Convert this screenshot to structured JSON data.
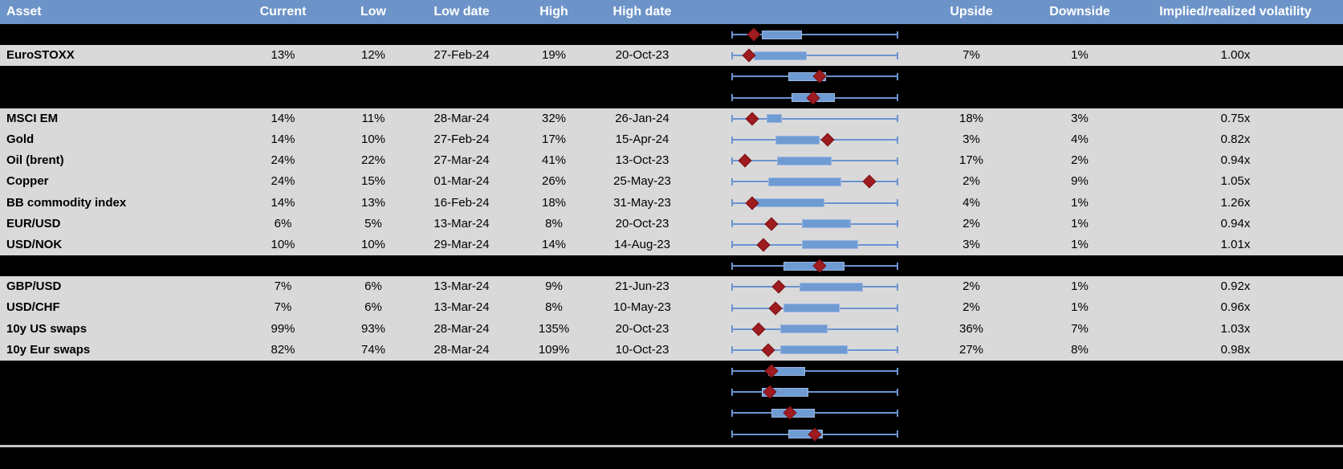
{
  "header": {
    "columns": {
      "asset": "Asset",
      "current": "Current",
      "low": "Low",
      "low_date": "Low date",
      "high": "High",
      "high_date": "High date",
      "chart": "",
      "upside": "Upside",
      "downside": "Downside",
      "iv_rv": "Implied/realized volatility"
    }
  },
  "colors": {
    "header_bg": "#6D94C8",
    "header_text": "#FFFFFF",
    "row_bg": "#D9D9D9",
    "hidden_bg": "#000000",
    "body_text": "#000000",
    "box_fill": "#6F9BD3",
    "box_border": "#9BB6E2",
    "whisker": "#6B94D0",
    "marker": "#9E1B20",
    "marker_border": "#7A1115",
    "separator": "#C6C6C6"
  },
  "chart_data": {
    "type": "table",
    "title": "",
    "columns": [
      "Asset",
      "Current",
      "Low",
      "Low date",
      "High",
      "High date",
      "1y range box-whisker chart",
      "Upside",
      "Downside",
      "Implied/realized volatility"
    ],
    "legend": {
      "whisker": "full range (shared axis, all rows span identical min-max whiskers)",
      "box": "inner range, normalized 0-1 across the shared whisker axis",
      "marker": "red diamond = current level, normalized 0-1"
    },
    "rows": [
      {
        "kind": "hidden",
        "asset": "",
        "current": "",
        "low": "",
        "low_date": "",
        "high": "",
        "high_date": "",
        "upside": "",
        "downside": "",
        "iv_rv": "",
        "box_lo": 0.18,
        "box_hi": 0.42,
        "marker": 0.13
      },
      {
        "kind": "data",
        "asset": "EuroSTOXX",
        "current": "13%",
        "low": "12%",
        "low_date": "27-Feb-24",
        "high": "19%",
        "high_date": "20-Oct-23",
        "upside": "7%",
        "downside": "1%",
        "iv_rv": "1.00x",
        "box_lo": 0.13,
        "box_hi": 0.45,
        "marker": 0.1
      },
      {
        "kind": "hidden",
        "asset": "",
        "current": "",
        "low": "",
        "low_date": "",
        "high": "",
        "high_date": "",
        "upside": "",
        "downside": "",
        "iv_rv": "",
        "box_lo": 0.34,
        "box_hi": 0.57,
        "marker": 0.53
      },
      {
        "kind": "hidden",
        "asset": "",
        "current": "",
        "low": "",
        "low_date": "",
        "high": "",
        "high_date": "",
        "upside": "",
        "downside": "",
        "iv_rv": "",
        "box_lo": 0.36,
        "box_hi": 0.62,
        "marker": 0.49
      },
      {
        "kind": "data",
        "asset": "MSCI EM",
        "current": "14%",
        "low": "11%",
        "low_date": "28-Mar-24",
        "high": "32%",
        "high_date": "26-Jan-24",
        "upside": "18%",
        "downside": "3%",
        "iv_rv": "0.75x",
        "box_lo": 0.21,
        "box_hi": 0.3,
        "marker": 0.12
      },
      {
        "kind": "data",
        "asset": "Gold",
        "current": "14%",
        "low": "10%",
        "low_date": "27-Feb-24",
        "high": "17%",
        "high_date": "15-Apr-24",
        "upside": "3%",
        "downside": "4%",
        "iv_rv": "0.82x",
        "box_lo": 0.26,
        "box_hi": 0.53,
        "marker": 0.58
      },
      {
        "kind": "data",
        "asset": "Oil (brent)",
        "current": "24%",
        "low": "22%",
        "low_date": "27-Mar-24",
        "high": "41%",
        "high_date": "13-Oct-23",
        "upside": "17%",
        "downside": "2%",
        "iv_rv": "0.94x",
        "box_lo": 0.27,
        "box_hi": 0.6,
        "marker": 0.08
      },
      {
        "kind": "data",
        "asset": "Copper",
        "current": "24%",
        "low": "15%",
        "low_date": "01-Mar-24",
        "high": "26%",
        "high_date": "25-May-23",
        "upside": "2%",
        "downside": "9%",
        "iv_rv": "1.05x",
        "box_lo": 0.22,
        "box_hi": 0.66,
        "marker": 0.83
      },
      {
        "kind": "data",
        "asset": "BB commodity index",
        "current": "14%",
        "low": "13%",
        "low_date": "16-Feb-24",
        "high": "18%",
        "high_date": "31-May-23",
        "upside": "4%",
        "downside": "1%",
        "iv_rv": "1.26x",
        "box_lo": 0.13,
        "box_hi": 0.56,
        "marker": 0.12
      },
      {
        "kind": "data",
        "asset": "EUR/USD",
        "current": "6%",
        "low": "5%",
        "low_date": "13-Mar-24",
        "high": "8%",
        "high_date": "20-Oct-23",
        "upside": "2%",
        "downside": "1%",
        "iv_rv": "0.94x",
        "box_lo": 0.42,
        "box_hi": 0.72,
        "marker": 0.24
      },
      {
        "kind": "data",
        "asset": "USD/NOK",
        "current": "10%",
        "low": "10%",
        "low_date": "29-Mar-24",
        "high": "14%",
        "high_date": "14-Aug-23",
        "upside": "3%",
        "downside": "1%",
        "iv_rv": "1.01x",
        "box_lo": 0.42,
        "box_hi": 0.76,
        "marker": 0.19
      },
      {
        "kind": "hidden",
        "asset": "",
        "current": "",
        "low": "",
        "low_date": "",
        "high": "",
        "high_date": "",
        "upside": "",
        "downside": "",
        "iv_rv": "",
        "box_lo": 0.31,
        "box_hi": 0.68,
        "marker": 0.53
      },
      {
        "kind": "data",
        "asset": "GBP/USD",
        "current": "7%",
        "low": "6%",
        "low_date": "13-Mar-24",
        "high": "9%",
        "high_date": "21-Jun-23",
        "upside": "2%",
        "downside": "1%",
        "iv_rv": "0.92x",
        "box_lo": 0.41,
        "box_hi": 0.79,
        "marker": 0.28
      },
      {
        "kind": "data",
        "asset": "USD/CHF",
        "current": "7%",
        "low": "6%",
        "low_date": "13-Mar-24",
        "high": "8%",
        "high_date": "10-May-23",
        "upside": "2%",
        "downside": "1%",
        "iv_rv": "0.96x",
        "box_lo": 0.31,
        "box_hi": 0.65,
        "marker": 0.26
      },
      {
        "kind": "data",
        "asset": "10y US swaps",
        "current": "99%",
        "low": "93%",
        "low_date": "28-Mar-24",
        "high": "135%",
        "high_date": "20-Oct-23",
        "upside": "36%",
        "downside": "7%",
        "iv_rv": "1.03x",
        "box_lo": 0.29,
        "box_hi": 0.58,
        "marker": 0.16
      },
      {
        "kind": "data",
        "asset": "10y Eur swaps",
        "current": "82%",
        "low": "74%",
        "low_date": "28-Mar-24",
        "high": "109%",
        "high_date": "10-Oct-23",
        "upside": "27%",
        "downside": "8%",
        "iv_rv": "0.98x",
        "box_lo": 0.29,
        "box_hi": 0.7,
        "marker": 0.22
      },
      {
        "kind": "hidden",
        "asset": "",
        "current": "",
        "low": "",
        "low_date": "",
        "high": "",
        "high_date": "",
        "upside": "",
        "downside": "",
        "iv_rv": "",
        "box_lo": 0.22,
        "box_hi": 0.44,
        "marker": 0.24
      },
      {
        "kind": "hidden",
        "asset": "",
        "current": "",
        "low": "",
        "low_date": "",
        "high": "",
        "high_date": "",
        "upside": "",
        "downside": "",
        "iv_rv": "",
        "box_lo": 0.18,
        "box_hi": 0.46,
        "marker": 0.23
      },
      {
        "kind": "hidden",
        "asset": "",
        "current": "",
        "low": "",
        "low_date": "",
        "high": "",
        "high_date": "",
        "upside": "",
        "downside": "",
        "iv_rv": "",
        "box_lo": 0.24,
        "box_hi": 0.5,
        "marker": 0.35
      },
      {
        "kind": "hidden",
        "asset": "",
        "current": "",
        "low": "",
        "low_date": "",
        "high": "",
        "high_date": "",
        "upside": "",
        "downside": "",
        "iv_rv": "",
        "box_lo": 0.34,
        "box_hi": 0.55,
        "marker": 0.5
      }
    ]
  }
}
